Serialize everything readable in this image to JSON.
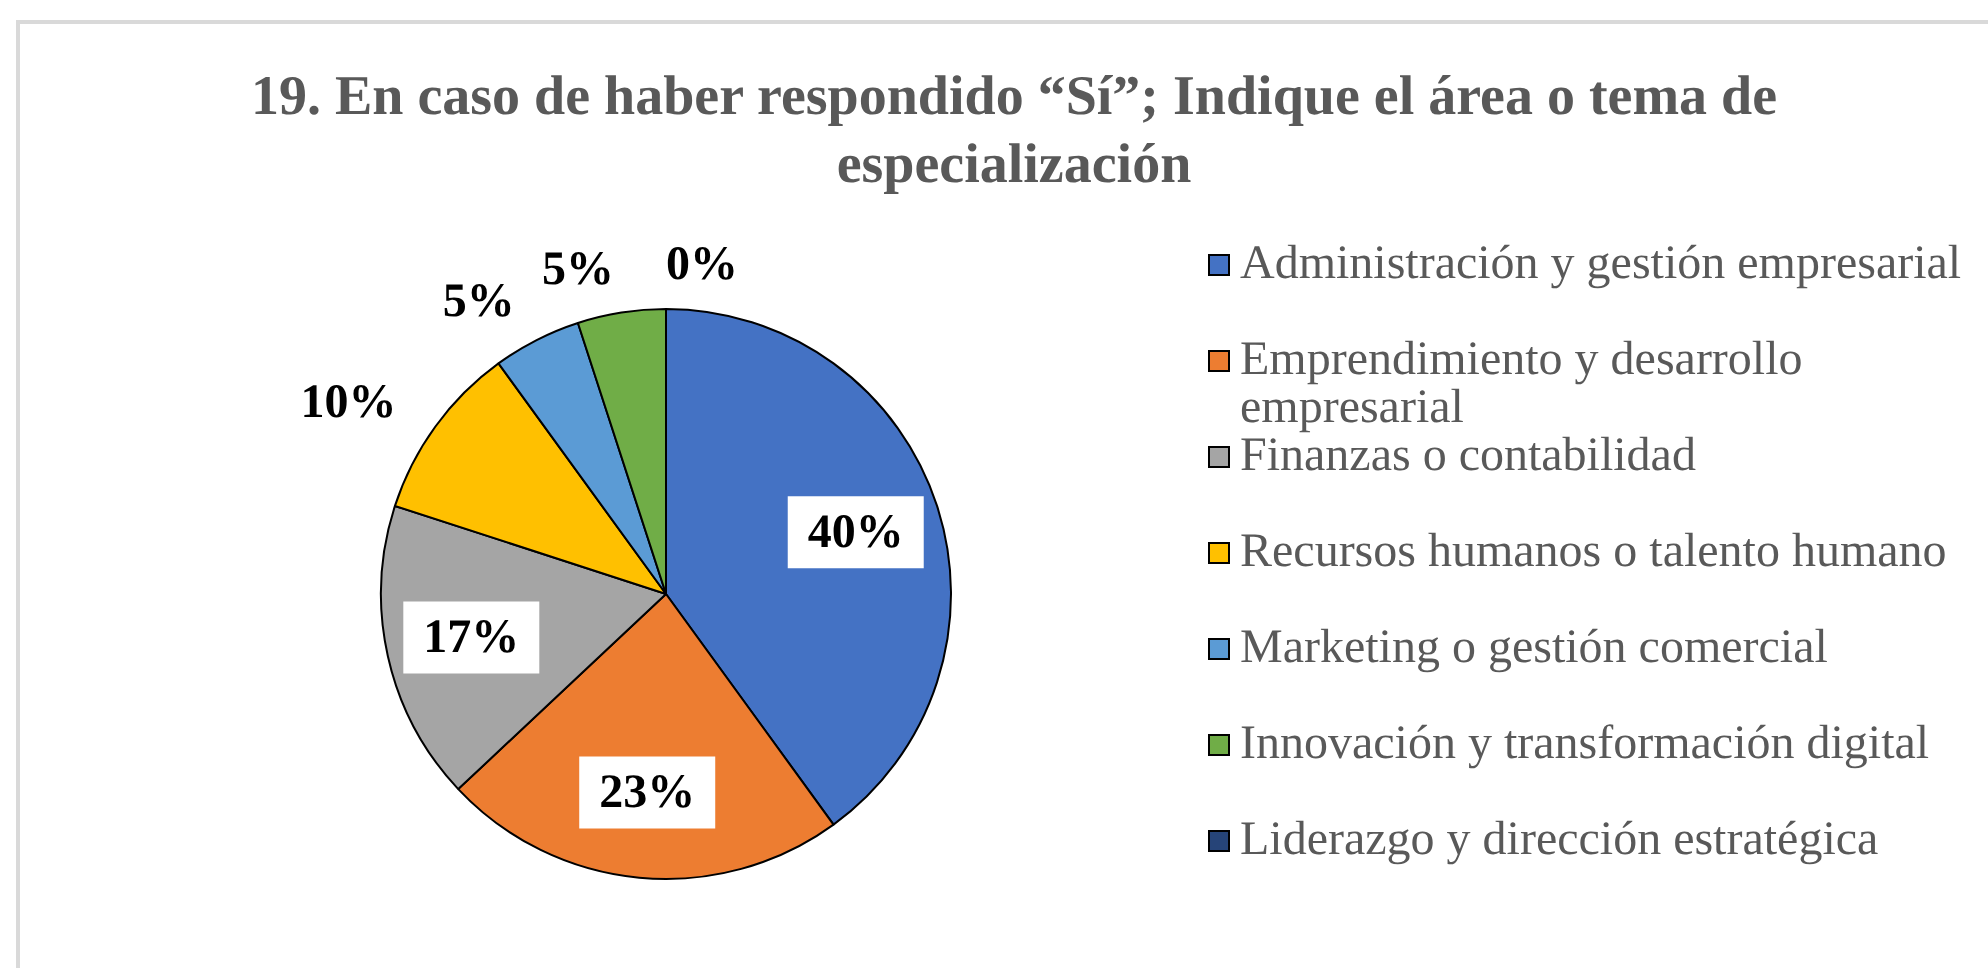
{
  "chart_data": {
    "type": "pie",
    "title": "19. En caso de haber respondido “Sí”; Indique el área o tema de especialización",
    "categories": [
      "Administración y gestión empresarial",
      "Emprendimiento y desarrollo empresarial",
      "Finanzas o contabilidad",
      "Recursos humanos o talento humano",
      "Marketing o gestión comercial",
      "Innovación y transformación digital",
      "Liderazgo y dirección estratégica"
    ],
    "values": [
      40,
      23,
      17,
      10,
      5,
      5,
      0
    ],
    "colors": [
      "#4472c4",
      "#ed7d31",
      "#a5a5a5",
      "#ffc000",
      "#5b9bd5",
      "#70ad47",
      "#264478"
    ],
    "value_labels": [
      "40%",
      "23%",
      "17%",
      "10%",
      "5%",
      "5%",
      "0%"
    ],
    "legend": "right"
  }
}
